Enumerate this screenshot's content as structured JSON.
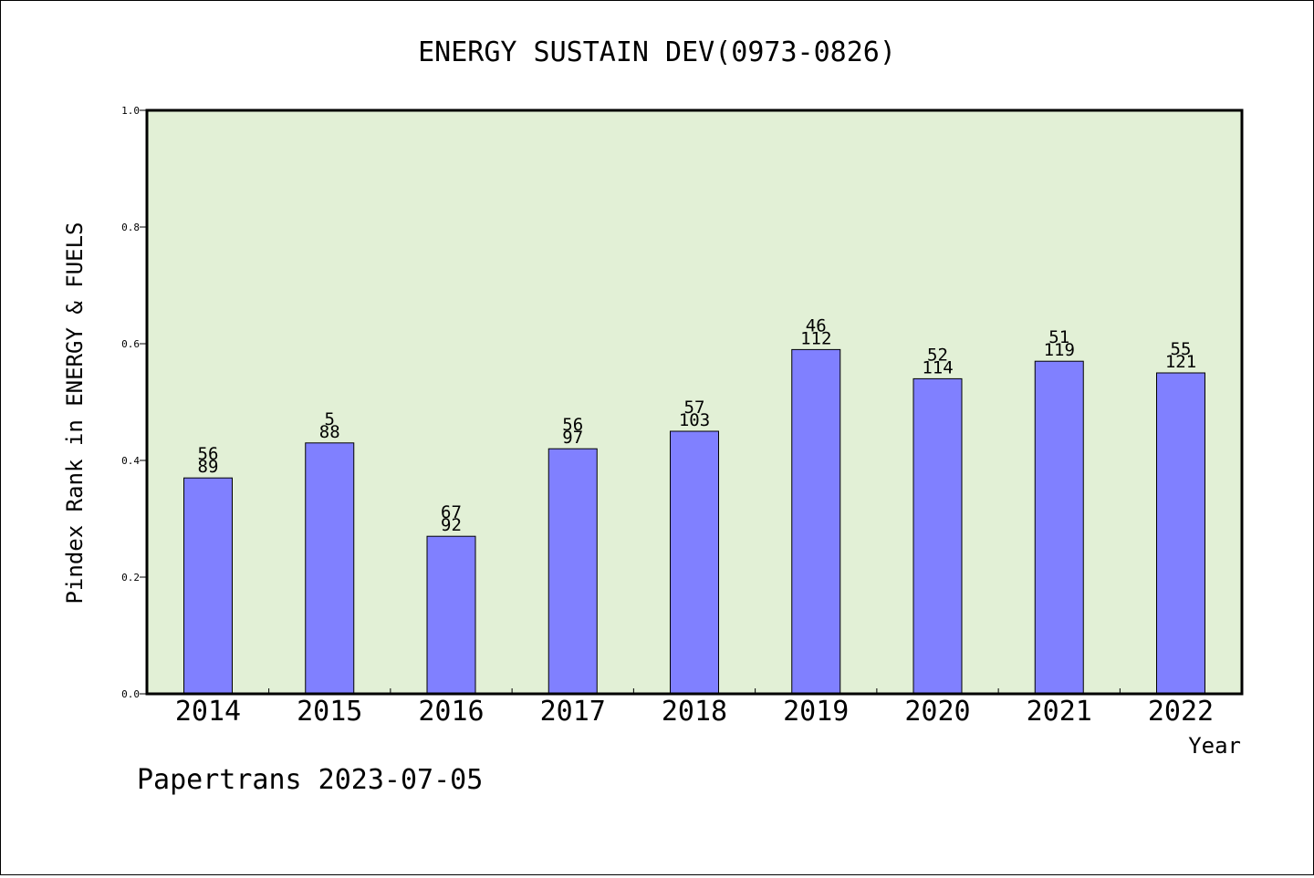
{
  "chart_data": {
    "type": "bar",
    "title": "ENERGY SUSTAIN DEV(0973-0826)",
    "xlabel": "Year",
    "ylabel": "Pindex Rank in ENERGY & FUELS",
    "ylim": [
      0.0,
      1.0
    ],
    "yticks": [
      "0.0",
      "0.2",
      "0.4",
      "0.6",
      "0.8",
      "1.0"
    ],
    "grid": false,
    "categories": [
      "2014",
      "2015",
      "2016",
      "2017",
      "2018",
      "2019",
      "2020",
      "2021",
      "2022"
    ],
    "values": [
      0.37,
      0.43,
      0.27,
      0.42,
      0.45,
      0.59,
      0.54,
      0.57,
      0.55
    ],
    "labels_top": [
      "56",
      "5",
      "67",
      "56",
      "57",
      "46",
      "52",
      "51",
      "55"
    ],
    "labels_bottom": [
      "89",
      "88",
      "92",
      "97",
      "103",
      "112",
      "114",
      "119",
      "121"
    ],
    "colors": {
      "plot_background": "#e2f0d6",
      "bar_fill": "#8080ff",
      "bar_edge": "#000000"
    }
  },
  "footer": {
    "text": "Papertrans 2023-07-05"
  }
}
